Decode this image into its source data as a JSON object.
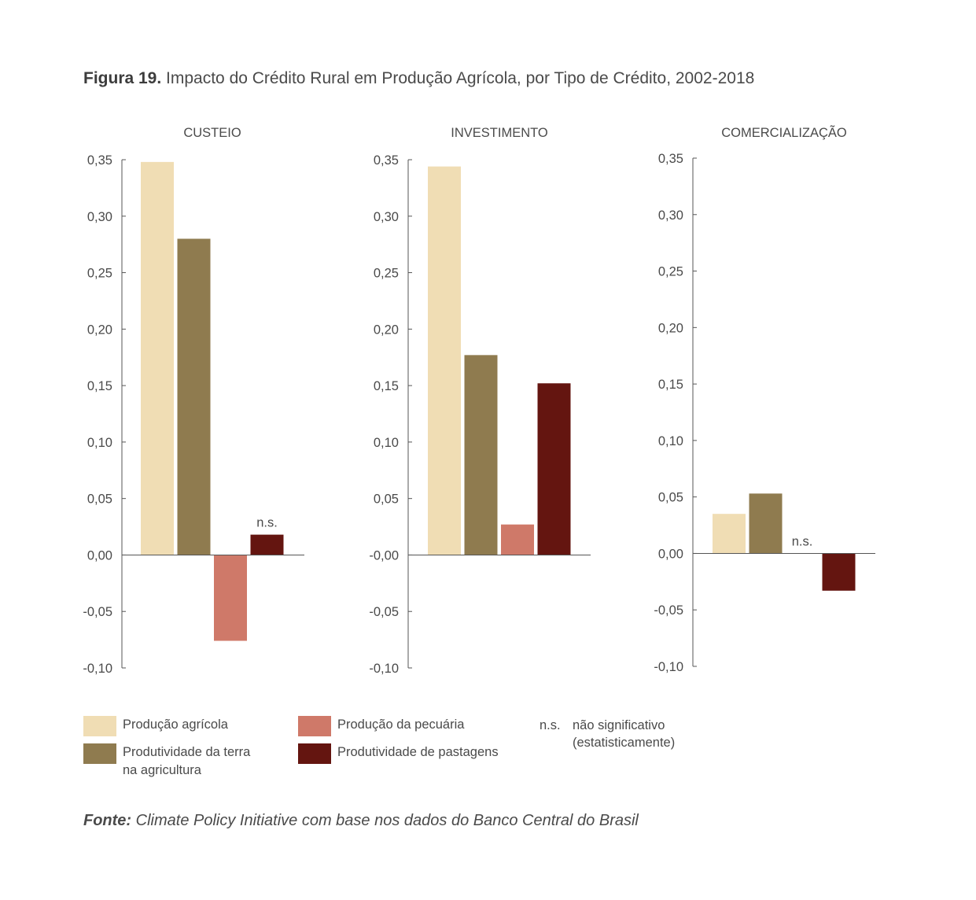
{
  "title": {
    "prefix": "Figura 19.",
    "text": " Impacto do Crédito Rural em Produção Agrícola, por Tipo de Crédito, 2002-2018"
  },
  "chart_data": [
    {
      "type": "bar",
      "title": "CUSTEIO",
      "categories": [
        "Produção agrícola",
        "Produtividade da terra na agricultura",
        "Produção da pecuária",
        "Produtividade de pastagens"
      ],
      "values": [
        0.348,
        0.28,
        -0.076,
        0.018
      ],
      "annotations": [
        null,
        null,
        null,
        "n.s."
      ],
      "ylim": [
        -0.1,
        0.35
      ],
      "yticks": [
        "0,35",
        "0,30",
        "0,25",
        "0,20",
        "0,15",
        "0,10",
        "0,05",
        "0,00",
        "-0,05",
        "-0,10"
      ]
    },
    {
      "type": "bar",
      "title": "INVESTIMENTO",
      "categories": [
        "Produção agrícola",
        "Produtividade da terra na agricultura",
        "Produção da pecuária",
        "Produtividade de pastagens"
      ],
      "values": [
        0.344,
        0.177,
        0.027,
        0.152
      ],
      "annotations": [
        null,
        null,
        null,
        null
      ],
      "ylim": [
        -0.1,
        0.35
      ],
      "yticks": [
        "0,35",
        "0,30",
        "0,25",
        "0,20",
        "0,15",
        "0,10",
        "0,05",
        "-0,00",
        "-0,05",
        "-0,10"
      ]
    },
    {
      "type": "bar",
      "title": "COMERCIALIZAÇÃO",
      "categories": [
        "Produção agrícola",
        "Produtividade da terra na agricultura",
        "Produção da pecuária",
        "Produtividade de pastagens"
      ],
      "values": [
        0.035,
        0.053,
        0.0,
        -0.033
      ],
      "annotations": [
        null,
        null,
        "n.s.",
        null
      ],
      "ylim": [
        -0.1,
        0.35
      ],
      "yticks": [
        "0,35",
        "0,30",
        "0,25",
        "0,20",
        "0,15",
        "0,10",
        "0,05",
        "0,00",
        "-0,05",
        "-0,10"
      ]
    }
  ],
  "colors": [
    "#f0ddb4",
    "#8f7b4f",
    "#cf7969",
    "#641510"
  ],
  "legend": [
    {
      "label": "Produção agrícola",
      "label2": "",
      "color": "#f0ddb4"
    },
    {
      "label": "Produtividade da terra",
      "label2": "na agricultura",
      "color": "#8f7b4f"
    },
    {
      "label": "Produção da pecuária",
      "label2": "",
      "color": "#cf7969"
    },
    {
      "label": "Produtividade de pastagens",
      "label2": "",
      "color": "#641510"
    }
  ],
  "ns_note": {
    "abbr": "n.s.",
    "line1": "não significativo",
    "line2": "(estatisticamente)"
  },
  "source": {
    "prefix": "Fonte:",
    "text": " Climate Policy Initiative com base nos dados do Banco Central do Brasil"
  }
}
